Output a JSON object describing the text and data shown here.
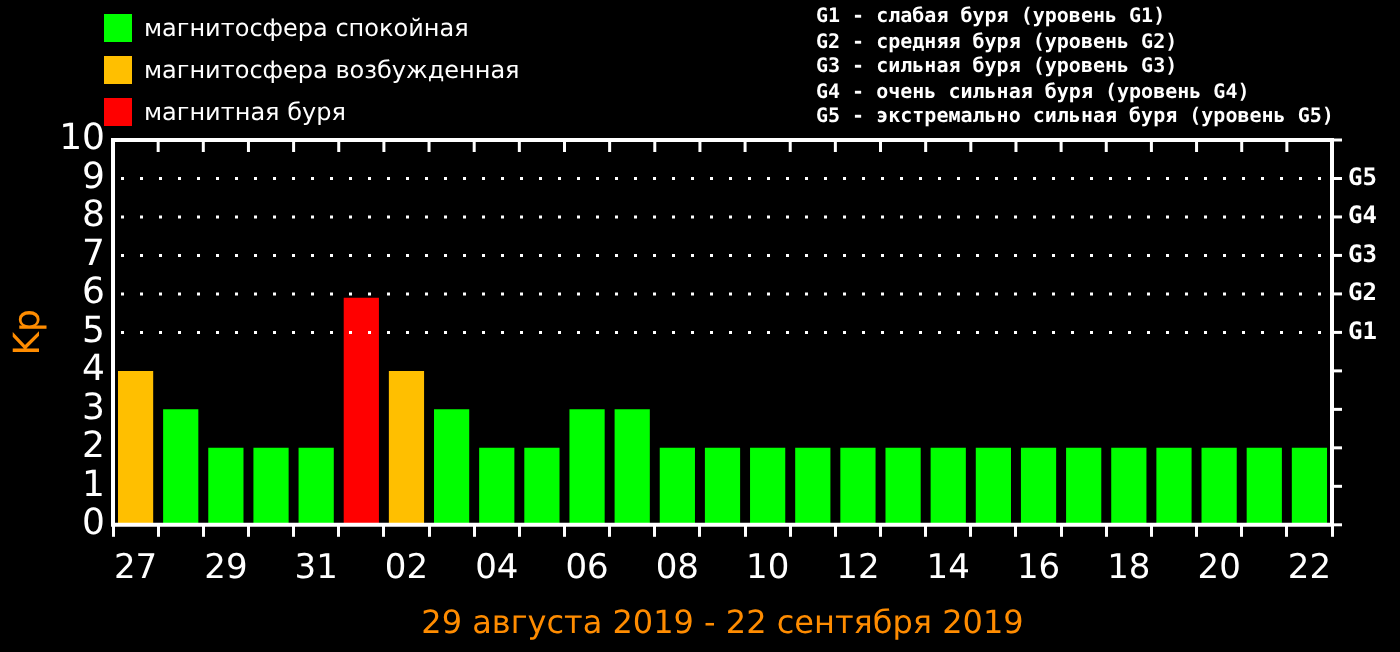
{
  "chart_data": {
    "type": "bar",
    "stacked": true,
    "xlabel": "29 августа 2019 - 22 сентября 2019",
    "ylabel": "Kp",
    "categories": [
      "27",
      null,
      "29",
      null,
      "31",
      null,
      "02",
      null,
      "04",
      null,
      "06",
      null,
      "08",
      null,
      "10",
      null,
      "12",
      null,
      "14",
      null,
      "16",
      null,
      "18",
      null,
      "20",
      null,
      "22"
    ],
    "series": [
      {
        "name": "магнитосфера спокойная",
        "color": "#00ff00",
        "values": [
          null,
          3,
          2,
          2,
          2,
          null,
          null,
          3,
          2,
          2,
          3,
          3,
          2,
          2,
          2,
          2,
          2,
          2,
          2,
          2,
          2,
          2,
          2,
          2,
          2,
          2,
          2
        ]
      },
      {
        "name": "магнитосфера возбужденная",
        "color": "#ffbf00",
        "values": [
          4,
          null,
          null,
          null,
          null,
          null,
          4,
          null,
          null,
          null,
          null,
          null,
          null,
          null,
          null,
          null,
          null,
          null,
          null,
          null,
          null,
          null,
          null,
          null,
          null,
          null,
          null
        ]
      },
      {
        "name": "магнитная буря",
        "color": "#ff0000",
        "values": [
          null,
          null,
          null,
          null,
          null,
          5.9,
          null,
          null,
          null,
          null,
          null,
          null,
          null,
          null,
          null,
          null,
          null,
          null,
          null,
          null,
          null,
          null,
          null,
          null,
          null,
          null,
          null
        ]
      }
    ],
    "ylim": [
      0,
      10
    ],
    "yticks": [
      0,
      1,
      2,
      3,
      4,
      5,
      6,
      7,
      8,
      9,
      10
    ],
    "ref_lines": [
      {
        "axis": "y",
        "value": 5,
        "label": "G1",
        "line_style": "dotted"
      },
      {
        "axis": "y",
        "value": 6,
        "label": "G2",
        "line_style": "dotted"
      },
      {
        "axis": "y",
        "value": 7,
        "label": "G3",
        "line_style": "dotted"
      },
      {
        "axis": "y",
        "value": 8,
        "label": "G4",
        "line_style": "dotted"
      },
      {
        "axis": "y",
        "value": 9,
        "label": "G5",
        "line_style": "dotted"
      }
    ],
    "annotations": [
      "G1 - слабая буря (уровень G1)",
      "G2 - средняя буря (уровень G2)",
      "G3 - сильная буря (уровень G3)",
      "G4 - очень сильная буря (уровень G4)",
      "G5 - экстремально сильная буря (уровень G5)"
    ],
    "legend": "top left",
    "grid": false
  }
}
